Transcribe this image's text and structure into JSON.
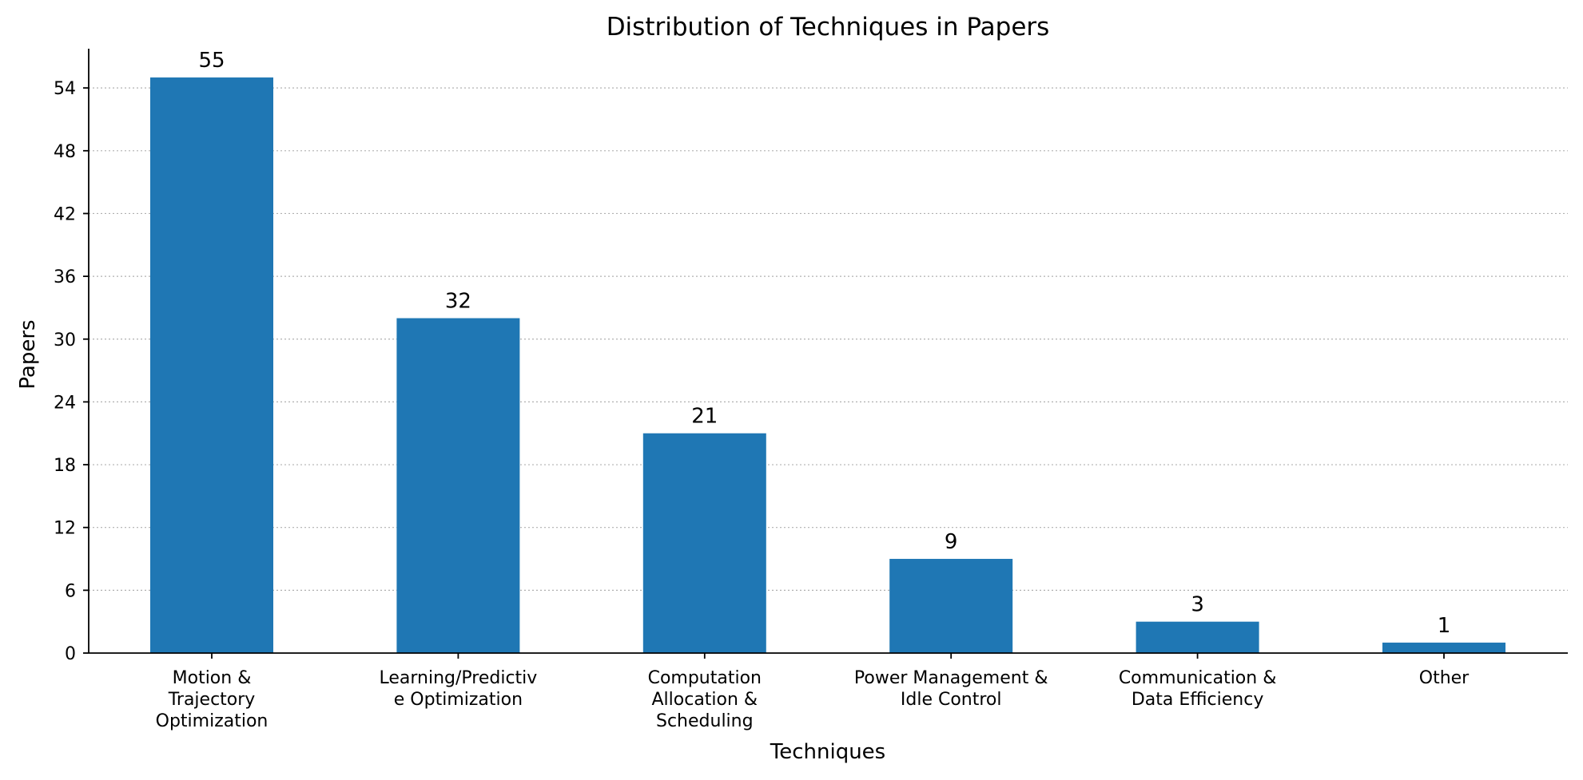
{
  "chart_data": {
    "type": "bar",
    "title": "Distribution of Techniques in Papers",
    "xlabel": "Techniques",
    "ylabel": "Papers",
    "categories": [
      [
        "Motion &",
        "Trajectory",
        "Optimization"
      ],
      [
        "Learning/Predictiv",
        "e Optimization"
      ],
      [
        "Computation",
        "Allocation &",
        "Scheduling"
      ],
      [
        "Power Management &",
        "Idle Control"
      ],
      [
        "Communication &",
        "Data Efficiency"
      ],
      [
        "Other"
      ]
    ],
    "values": [
      55,
      32,
      21,
      9,
      3,
      1
    ],
    "value_labels": [
      "55",
      "32",
      "21",
      "9",
      "3",
      "1"
    ],
    "yticks": [
      0,
      6,
      12,
      18,
      24,
      30,
      36,
      42,
      48,
      54
    ],
    "ylim": [
      0,
      57.75
    ],
    "grid": "y-dotted",
    "bar_color": "#1f77b4"
  }
}
